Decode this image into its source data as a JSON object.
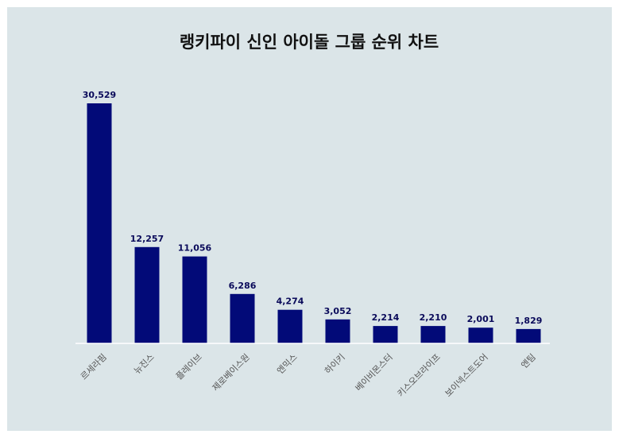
{
  "chart_data": {
    "type": "bar",
    "title": "랭키파이 신인 아이돌 그룹 순위 차트",
    "xlabel": "",
    "ylabel": "",
    "categories": [
      "르세라핌",
      "뉴진스",
      "플레이브",
      "제로베이스원",
      "엔믹스",
      "하이키",
      "베이비몬스터",
      "키스오브라이프",
      "보이넥스트도어",
      "엔팀"
    ],
    "values": [
      30529,
      12257,
      11056,
      6286,
      4274,
      3052,
      2214,
      2210,
      2001,
      1829
    ],
    "value_labels": [
      "30,529",
      "12,257",
      "11,056",
      "6,286",
      "4,274",
      "3,052",
      "2,214",
      "2,210",
      "2,001",
      "1,829"
    ],
    "ylim": [
      0,
      30529
    ],
    "grid": false,
    "legend": "none",
    "colors": {
      "bar": "#020a78",
      "background": "#dbe5e8",
      "baseline": "#ffffff"
    }
  }
}
